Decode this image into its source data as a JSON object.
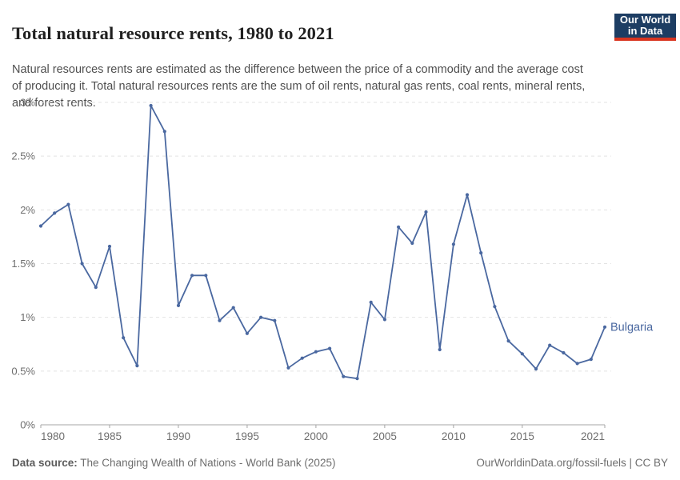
{
  "header": {
    "title": "Total natural resource rents, 1980 to 2021",
    "subtitle": "Natural resources rents are estimated as the difference between the price of a commodity and the average cost of producing it. Total natural resources rents are the sum of oil rents, natural gas rents, coal rents, mineral rents, and forest rents.",
    "logo": {
      "line1": "Our World",
      "line2": "in Data",
      "bg_color": "#1d3d63",
      "accent_color": "#d9341f"
    }
  },
  "chart_data": {
    "type": "line",
    "title": "Total natural resource rents, 1980 to 2021",
    "xlabel": "",
    "ylabel": "",
    "xlim": [
      1980,
      2021
    ],
    "ylim": [
      0,
      3
    ],
    "grid": "horizontal-dashed",
    "legend_position": "end-of-line-label",
    "xticks": [
      1980,
      1985,
      1990,
      1995,
      2000,
      2005,
      2010,
      2015,
      2021
    ],
    "yticks": [
      0,
      0.5,
      1,
      1.5,
      2,
      2.5,
      3
    ],
    "ytick_labels": [
      "0%",
      "0.5%",
      "1%",
      "1.5%",
      "2%",
      "2.5%",
      "3%"
    ],
    "x": [
      1980,
      1981,
      1982,
      1983,
      1984,
      1985,
      1986,
      1987,
      1988,
      1989,
      1990,
      1991,
      1992,
      1993,
      1994,
      1995,
      1996,
      1997,
      1998,
      1999,
      2000,
      2001,
      2002,
      2003,
      2004,
      2005,
      2006,
      2007,
      2008,
      2009,
      2010,
      2011,
      2012,
      2013,
      2014,
      2015,
      2016,
      2017,
      2018,
      2019,
      2020,
      2021
    ],
    "series": [
      {
        "name": "Bulgaria",
        "color": "#4a68a0",
        "values": [
          1.85,
          1.97,
          2.05,
          1.5,
          1.28,
          1.66,
          0.81,
          0.55,
          2.97,
          2.73,
          1.11,
          1.39,
          1.39,
          0.97,
          1.09,
          0.85,
          1.0,
          0.97,
          0.53,
          0.62,
          0.68,
          0.71,
          0.45,
          0.43,
          1.14,
          0.98,
          1.84,
          1.69,
          1.98,
          0.7,
          1.68,
          2.14,
          1.6,
          1.1,
          0.78,
          0.66,
          0.52,
          0.74,
          0.67,
          0.57,
          0.61,
          0.91
        ]
      }
    ],
    "axis_color": "#a5a5a5",
    "grid_color": "#e3e3e3",
    "tick_label_color": "#6e6e6e"
  },
  "footer": {
    "source_label": "Data source:",
    "source_text": " The Changing Wealth of Nations - World Bank (2025)",
    "right_text": "OurWorldinData.org/fossil-fuels | CC BY"
  }
}
